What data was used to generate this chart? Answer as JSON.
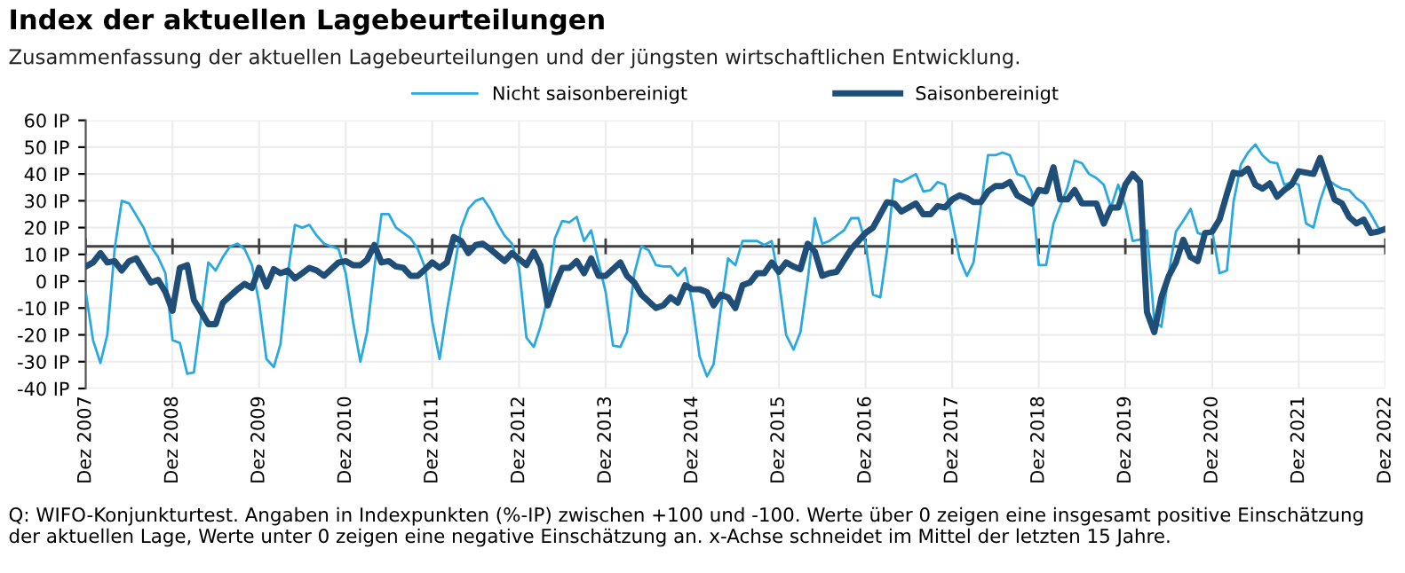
{
  "chart_data": {
    "type": "line",
    "title": "Index der aktuellen Lagebeurteilungen",
    "subtitle": "Zusammenfassung der aktuellen Lagebeurteilungen und der jüngsten wirtschaftlichen Entwicklung.",
    "annotations": [
      "Q: WIFO-Konjunkturtest. Angaben in Indexpunkten (%-IP) zwischen +100 und -100. Werte über 0 zeigen eine insgesamt positive Einschätzung\nder aktuellen Lage, Werte unter 0 zeigen eine negative Einschätzung an. x-Achse schneidet im Mittel der letzten 15 Jahre."
    ],
    "series": [
      {
        "name": "Nicht saisonbereinigt",
        "color": "#2aa8e0",
        "x": [
          "2007-12",
          "2008-01",
          "2008-02",
          "2008-03",
          "2008-04",
          "2008-05",
          "2008-06",
          "2008-08",
          "2008-09",
          "2008-10",
          "2008-11",
          "2008-12",
          "2009-01",
          "2009-02",
          "2009-03",
          "2009-05",
          "2009-06",
          "2009-07",
          "2009-08",
          "2009-09",
          "2009-10",
          "2009-11",
          "2009-12",
          "2010-01",
          "2010-02",
          "2010-03",
          "2010-04",
          "2010-05",
          "2010-06",
          "2010-07",
          "2010-08",
          "2010-09",
          "2010-11",
          "2010-12",
          "2011-01",
          "2011-02",
          "2011-03",
          "2011-04",
          "2011-05",
          "2011-06",
          "2011-07",
          "2011-09",
          "2011-10",
          "2011-11",
          "2011-12",
          "2012-01",
          "2012-02",
          "2012-04",
          "2012-05",
          "2012-06",
          "2012-07",
          "2012-08",
          "2012-09",
          "2012-10",
          "2012-11",
          "2012-12",
          "2013-01",
          "2013-02",
          "2013-03",
          "2013-04",
          "2013-05",
          "2013-06",
          "2013-07",
          "2013-08",
          "2013-09",
          "2013-10",
          "2013-11",
          "2013-12",
          "2014-01",
          "2014-02",
          "2014-03",
          "2014-04",
          "2014-05",
          "2014-06",
          "2014-07",
          "2014-08",
          "2014-09",
          "2014-10",
          "2014-11",
          "2014-12",
          "2015-01",
          "2015-02",
          "2015-03",
          "2015-04",
          "2015-05",
          "2015-06",
          "2015-07",
          "2015-08",
          "2015-09",
          "2015-10",
          "2015-11",
          "2015-12",
          "2016-01",
          "2016-02",
          "2016-03",
          "2016-04",
          "2016-05",
          "2016-06",
          "2016-07",
          "2016-08",
          "2016-09",
          "2016-10",
          "2016-11",
          "2016-12",
          "2017-01",
          "2017-02",
          "2017-03",
          "2017-04",
          "2017-05",
          "2017-06",
          "2017-07",
          "2017-08",
          "2017-09",
          "2017-10",
          "2017-11",
          "2017-12",
          "2018-01",
          "2018-02",
          "2018-03",
          "2018-04",
          "2018-05",
          "2018-06",
          "2018-07",
          "2018-08",
          "2018-09",
          "2018-10",
          "2018-11",
          "2018-12",
          "2019-01",
          "2019-02",
          "2019-04",
          "2019-05",
          "2019-06",
          "2019-07",
          "2019-08",
          "2019-09",
          "2019-10",
          "2019-11",
          "2019-12",
          "2020-01",
          "2020-02",
          "2020-03",
          "2020-04",
          "2020-05",
          "2020-06",
          "2020-07",
          "2020-08",
          "2020-09",
          "2020-10",
          "2020-11",
          "2020-12",
          "2021-01",
          "2021-02",
          "2021-03",
          "2021-04",
          "2021-05",
          "2021-06",
          "2021-07",
          "2021-08",
          "2021-09",
          "2021-10",
          "2021-11",
          "2021-12",
          "2022-01",
          "2022-02",
          "2022-03",
          "2022-04",
          "2022-05",
          "2022-06",
          "2022-07",
          "2022-08",
          "2022-09",
          "2022-10",
          "2022-11",
          "2022-12"
        ],
        "values": [
          -4,
          -22,
          -30.5,
          -20,
          12,
          30,
          29,
          20,
          13,
          9,
          3,
          -22,
          -23,
          -34.5,
          -34,
          7,
          4,
          9,
          13,
          14,
          12,
          6,
          -8,
          -29,
          -32,
          -23.5,
          3,
          21,
          20,
          21,
          17,
          14,
          12,
          3,
          -15,
          -30,
          -19,
          5,
          25,
          25,
          20,
          16,
          12,
          5,
          -15,
          -29,
          -11,
          20,
          27,
          30,
          31,
          27,
          21.5,
          17,
          14,
          5,
          -21,
          -24.5,
          -17,
          -6,
          16,
          22.5,
          22,
          24,
          15,
          19,
          7,
          -4,
          -24,
          -24.5,
          -19,
          3,
          13,
          11.5,
          6,
          5.5,
          5.5,
          2,
          5,
          -8,
          -28,
          -35.5,
          -31,
          -10,
          8.5,
          6,
          15,
          15,
          15,
          13.5,
          15,
          0.5,
          -20,
          -25.5,
          -19,
          0.5,
          23.5,
          14,
          15,
          17,
          19,
          23.5,
          23.5,
          14,
          -5,
          -6,
          11.5,
          38,
          37,
          38.5,
          40,
          33.5,
          34,
          37,
          36,
          22.5,
          8.5,
          2,
          7,
          28,
          47,
          47,
          48,
          47,
          40,
          39,
          33.5,
          6,
          6,
          21.5,
          35,
          45,
          44,
          40,
          38.5,
          36,
          27.5,
          36,
          28,
          15,
          15.5,
          19,
          -15,
          -17,
          3,
          18.5,
          22.5,
          27,
          18,
          17,
          19,
          3,
          4,
          29.5,
          43.5,
          48,
          51,
          47,
          44.5,
          44,
          36,
          37,
          36,
          21.5,
          20,
          30,
          38,
          36,
          34.5,
          34,
          31,
          29,
          25,
          20,
          18.5
        ]
      },
      {
        "name": "Saisonbereinigt",
        "color": "#1f4e79",
        "x": [
          "2007-12",
          "2008-01",
          "2008-02",
          "2008-03",
          "2008-04",
          "2008-05",
          "2008-06",
          "2008-07",
          "2008-08",
          "2008-09",
          "2008-10",
          "2008-11",
          "2008-12",
          "2009-01",
          "2009-02",
          "2009-03",
          "2009-04",
          "2009-05",
          "2009-06",
          "2009-07",
          "2009-08",
          "2009-09",
          "2009-10",
          "2009-11",
          "2009-12",
          "2010-01",
          "2010-02",
          "2010-03",
          "2010-04",
          "2010-05",
          "2010-06",
          "2010-07",
          "2010-08",
          "2010-09",
          "2010-10",
          "2010-11",
          "2010-12",
          "2011-01",
          "2011-02",
          "2011-03",
          "2011-04",
          "2011-05",
          "2011-06",
          "2011-07",
          "2011-08",
          "2011-09",
          "2011-10",
          "2011-11",
          "2011-12",
          "2012-01",
          "2012-02",
          "2012-03",
          "2012-04",
          "2012-05",
          "2012-06",
          "2012-07",
          "2012-08",
          "2012-10",
          "2012-11",
          "2013-01",
          "2013-02",
          "2013-03",
          "2013-04",
          "2013-05",
          "2013-06",
          "2013-07",
          "2013-08",
          "2013-09",
          "2013-10",
          "2013-11",
          "2013-12",
          "2014-02",
          "2014-03",
          "2014-04",
          "2014-05",
          "2014-07",
          "2014-08",
          "2014-09",
          "2014-10",
          "2014-11",
          "2014-12",
          "2015-01",
          "2015-02",
          "2015-03",
          "2015-04",
          "2015-05",
          "2015-06",
          "2015-07",
          "2015-08",
          "2015-09",
          "2015-10",
          "2015-11",
          "2015-12",
          "2016-01",
          "2016-02",
          "2016-03",
          "2016-04",
          "2016-05",
          "2016-06",
          "2016-07",
          "2016-08",
          "2016-10",
          "2016-11",
          "2016-12",
          "2017-01",
          "2017-02",
          "2017-03",
          "2017-04",
          "2017-05",
          "2017-06",
          "2017-07",
          "2017-08",
          "2017-09",
          "2017-10",
          "2017-11",
          "2017-12",
          "2018-01",
          "2018-02",
          "2018-03",
          "2018-04",
          "2018-05",
          "2018-06",
          "2018-07",
          "2018-08",
          "2018-09",
          "2018-10",
          "2018-11",
          "2018-12",
          "2019-01",
          "2019-02",
          "2019-03",
          "2019-04",
          "2019-05",
          "2019-06",
          "2019-07",
          "2019-08",
          "2019-09",
          "2019-10",
          "2019-11",
          "2019-12",
          "2020-01",
          "2020-02",
          "2020-03",
          "2020-04",
          "2020-05",
          "2020-06",
          "2020-07",
          "2020-08",
          "2020-09",
          "2020-10",
          "2020-11",
          "2020-12",
          "2021-01",
          "2021-02",
          "2021-03",
          "2021-04",
          "2021-05",
          "2021-06",
          "2021-07",
          "2021-08",
          "2021-09",
          "2021-10",
          "2021-11",
          "2021-12",
          "2022-01",
          "2022-02",
          "2022-03",
          "2022-04",
          "2022-05",
          "2022-06",
          "2022-07",
          "2022-08",
          "2022-09",
          "2022-10",
          "2022-11",
          "2022-12"
        ],
        "values": [
          5.5,
          7,
          10.5,
          7,
          7.5,
          4,
          7.5,
          8.5,
          4,
          -0.5,
          0.5,
          -4,
          -11,
          5,
          6,
          -7,
          -11.5,
          -16,
          -16,
          -8,
          -5.5,
          -3,
          -1,
          -2.5,
          5,
          -2,
          4.5,
          3,
          4,
          1,
          3,
          5,
          4,
          2,
          4.5,
          7,
          7.5,
          6,
          6,
          8,
          13.5,
          7,
          7.5,
          5.5,
          5,
          2,
          2,
          4.5,
          7,
          5,
          7,
          16.5,
          15,
          10.5,
          13.5,
          14,
          12,
          7.5,
          10.5,
          6,
          11,
          6,
          -9,
          -1.5,
          5,
          5,
          7.5,
          3,
          8.5,
          2,
          2,
          7,
          2,
          -0.5,
          -5,
          -10,
          -9,
          -6,
          -8,
          -1.5,
          -3,
          -3,
          -4,
          -9,
          -5,
          -6,
          -10,
          -1.5,
          -0.5,
          3,
          3,
          7,
          3.5,
          7,
          5.5,
          4.5,
          14,
          11,
          2,
          3,
          3.5,
          12,
          15,
          18,
          20,
          25,
          29.5,
          29,
          26,
          27.5,
          29,
          25,
          25,
          28,
          27.5,
          30.5,
          32,
          31,
          29.5,
          29.5,
          33.5,
          35.5,
          35.5,
          37,
          32,
          30.5,
          29,
          34,
          33.5,
          42.5,
          30.5,
          30.5,
          34,
          29,
          29,
          29,
          21.5,
          27.5,
          27.5,
          36,
          40,
          37,
          -11.5,
          -19,
          -6,
          2,
          7,
          15.5,
          9,
          7.5,
          18,
          18.5,
          23,
          32.5,
          40.5,
          40,
          42,
          36,
          34.5,
          36.5,
          31.5,
          34,
          36,
          41,
          40.5,
          40,
          46,
          38,
          30.5,
          29,
          24,
          21.5,
          23,
          18,
          18.5,
          19.5
        ]
      }
    ],
    "xlim": [
      "2007-12",
      "2022-12"
    ],
    "xticks": [
      {
        "value": "2007-12",
        "label": "Dez 2007"
      },
      {
        "value": "2008-12",
        "label": "Dez 2008"
      },
      {
        "value": "2009-12",
        "label": "Dez 2009"
      },
      {
        "value": "2010-12",
        "label": "Dez 2010"
      },
      {
        "value": "2011-12",
        "label": "Dez 2011"
      },
      {
        "value": "2012-12",
        "label": "Dez 2012"
      },
      {
        "value": "2013-12",
        "label": "Dez 2013"
      },
      {
        "value": "2014-12",
        "label": "Dez 2014"
      },
      {
        "value": "2015-12",
        "label": "Dez 2015"
      },
      {
        "value": "2016-12",
        "label": "Dez 2016"
      },
      {
        "value": "2017-12",
        "label": "Dez 2017"
      },
      {
        "value": "2018-12",
        "label": "Dez 2018"
      },
      {
        "value": "2019-12",
        "label": "Dez 2019"
      },
      {
        "value": "2020-12",
        "label": "Dez 2020"
      },
      {
        "value": "2021-12",
        "label": "Dez 2021"
      },
      {
        "value": "2022-12",
        "label": "Dez 2022"
      }
    ],
    "ylim": [
      -40,
      60
    ],
    "yticks": [
      {
        "value": -40,
        "label": "-40 IP"
      },
      {
        "value": -30,
        "label": "-30 IP"
      },
      {
        "value": -20,
        "label": "-20 IP"
      },
      {
        "value": -10,
        "label": "-10 IP"
      },
      {
        "value": 0,
        "label": "0 IP"
      },
      {
        "value": 10,
        "label": "10 IP"
      },
      {
        "value": 20,
        "label": "20 IP"
      },
      {
        "value": 30,
        "label": "30 IP"
      },
      {
        "value": 40,
        "label": "40 IP"
      },
      {
        "value": 50,
        "label": "50 IP"
      },
      {
        "value": 60,
        "label": "60 IP"
      }
    ],
    "ref_lines": [
      {
        "axis": "y",
        "value": 13,
        "label": null,
        "color": "#404040"
      }
    ],
    "grid": true,
    "legend": "top"
  }
}
